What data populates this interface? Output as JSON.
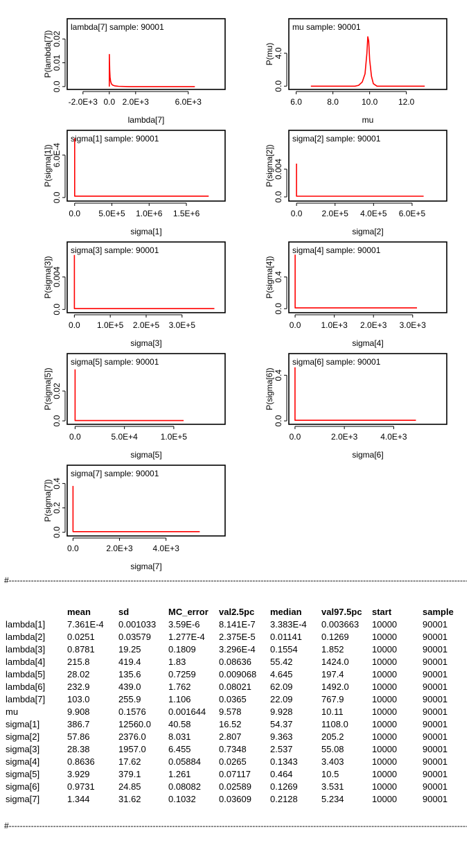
{
  "chart_data": [
    {
      "type": "line",
      "title": "lambda[7] sample: 90001",
      "xlabel": "lambda[7]",
      "ylabel": "P(lambda[7])",
      "xticks": [
        {
          "v": -2000,
          "l": "-2.0E+3"
        },
        {
          "v": 0,
          "l": "0.0"
        },
        {
          "v": 2000,
          "l": "2.0E+3"
        },
        {
          "v": 6000,
          "l": "6.0E+3"
        }
      ],
      "yticks": [
        {
          "v": 0,
          "l": "0.0"
        },
        {
          "v": 0.01,
          "l": "0.01"
        },
        {
          "v": 0.02,
          "l": "0.02"
        }
      ],
      "xlim": [
        -3200,
        8800
      ],
      "ylim": [
        -0.0012,
        0.0285
      ],
      "color": "#ff0000",
      "points": [
        [
          0,
          0
        ],
        [
          5,
          0.0135
        ],
        [
          15,
          0.0105
        ],
        [
          30,
          0.007
        ],
        [
          60,
          0.004
        ],
        [
          100,
          0.0022
        ],
        [
          160,
          0.0012
        ],
        [
          250,
          0.0006
        ],
        [
          400,
          0.0003
        ],
        [
          700,
          0.0001
        ],
        [
          1500,
          0
        ],
        [
          6500,
          0
        ]
      ]
    },
    {
      "type": "line",
      "title": "mu sample: 90001",
      "xlabel": "mu",
      "ylabel": "P(mu)",
      "xticks": [
        {
          "v": 6,
          "l": "6.0"
        },
        {
          "v": 8,
          "l": "8.0"
        },
        {
          "v": 10,
          "l": "10.0"
        },
        {
          "v": 12,
          "l": "12.0"
        }
      ],
      "yticks": [
        {
          "v": 0,
          "l": "0.0"
        },
        {
          "v": 4,
          "l": "4.0"
        }
      ],
      "xlim": [
        5.6,
        14.2
      ],
      "ylim": [
        -0.4,
        8.2
      ],
      "color": "#ff0000",
      "points": [
        [
          6.8,
          0
        ],
        [
          9.2,
          0
        ],
        [
          9.4,
          0.1
        ],
        [
          9.6,
          0.5
        ],
        [
          9.75,
          1.5
        ],
        [
          9.85,
          4
        ],
        [
          9.9,
          6
        ],
        [
          9.95,
          5.5
        ],
        [
          10.0,
          3.2
        ],
        [
          10.1,
          1.2
        ],
        [
          10.2,
          0.3
        ],
        [
          10.4,
          0
        ],
        [
          13,
          0
        ]
      ]
    },
    {
      "type": "line",
      "title": "sigma[1] sample: 90001",
      "xlabel": "sigma[1]",
      "ylabel": "P(sigma[1])",
      "xticks": [
        {
          "v": 0,
          "l": "0.0"
        },
        {
          "v": 500000,
          "l": "5.0E+5"
        },
        {
          "v": 1000000,
          "l": "1.0E+6"
        },
        {
          "v": 1500000,
          "l": "1.5E+6"
        }
      ],
      "yticks": [
        {
          "v": 0,
          "l": "0.0"
        },
        {
          "v": 0.0006,
          "l": "6.0E-4"
        }
      ],
      "xlim": [
        -100000,
        2020000
      ],
      "ylim": [
        -5e-05,
        0.00095
      ],
      "color": "#ff0000",
      "points": [
        [
          0,
          0.00084
        ],
        [
          0,
          2e-05
        ],
        [
          1800000,
          2e-05
        ]
      ]
    },
    {
      "type": "line",
      "title": "sigma[2] sample: 90001",
      "xlabel": "sigma[2]",
      "ylabel": "P(sigma[2])",
      "xticks": [
        {
          "v": 0,
          "l": "0.0"
        },
        {
          "v": 200000,
          "l": "2.0E+5"
        },
        {
          "v": 400000,
          "l": "4.0E+5"
        },
        {
          "v": 600000,
          "l": "6.0E+5"
        }
      ],
      "yticks": [
        {
          "v": 0,
          "l": "0.0"
        },
        {
          "v": 0.004,
          "l": "0.004"
        }
      ],
      "xlim": [
        -40000,
        780000
      ],
      "ylim": [
        -0.0006,
        0.0096
      ],
      "color": "#ff0000",
      "points": [
        [
          0,
          0.0048
        ],
        [
          0,
          0.0001
        ],
        [
          660000,
          0.0001
        ]
      ]
    },
    {
      "type": "line",
      "title": "sigma[3] sample: 90001",
      "xlabel": "sigma[3]",
      "ylabel": "P(sigma[3])",
      "xticks": [
        {
          "v": 0,
          "l": "0.0"
        },
        {
          "v": 100000,
          "l": "1.0E+5"
        },
        {
          "v": 200000,
          "l": "2.0E+5"
        },
        {
          "v": 300000,
          "l": "3.0E+5"
        }
      ],
      "yticks": [
        {
          "v": 0,
          "l": "0.0"
        },
        {
          "v": 0.004,
          "l": "0.004"
        }
      ],
      "xlim": [
        -20000,
        420000
      ],
      "ylim": [
        -0.0004,
        0.0083
      ],
      "color": "#ff0000",
      "points": [
        [
          0,
          0.0067
        ],
        [
          0,
          0.0001
        ],
        [
          390000,
          0.0001
        ]
      ]
    },
    {
      "type": "line",
      "title": "sigma[4] sample: 90001",
      "xlabel": "sigma[4]",
      "ylabel": "P(sigma[4])",
      "xticks": [
        {
          "v": 0,
          "l": "0.0"
        },
        {
          "v": 1000,
          "l": "1.0E+3"
        },
        {
          "v": 2000,
          "l": "2.0E+3"
        },
        {
          "v": 3000,
          "l": "3.0E+3"
        }
      ],
      "yticks": [
        {
          "v": 0,
          "l": "0.0"
        },
        {
          "v": 0.4,
          "l": "0.4"
        }
      ],
      "xlim": [
        -160,
        3870
      ],
      "ylim": [
        -0.05,
        0.84
      ],
      "color": "#ff0000",
      "points": [
        [
          0,
          0.68
        ],
        [
          0,
          0.01
        ],
        [
          3110,
          0.01
        ]
      ]
    },
    {
      "type": "line",
      "title": "sigma[5] sample: 90001",
      "xlabel": "sigma[5]",
      "ylabel": "P(sigma[5])",
      "xticks": [
        {
          "v": 0,
          "l": "0.0"
        },
        {
          "v": 50000,
          "l": "5.0E+4"
        },
        {
          "v": 100000,
          "l": "1.0E+5"
        }
      ],
      "yticks": [
        {
          "v": 0,
          "l": "0.0"
        },
        {
          "v": 0.02,
          "l": "0.02"
        }
      ],
      "xlim": [
        -8000,
        152000
      ],
      "ylim": [
        -0.0023,
        0.0451
      ],
      "color": "#ff0000",
      "points": [
        [
          0,
          0.0345
        ],
        [
          0,
          0.0002
        ],
        [
          110000,
          0.0002
        ]
      ]
    },
    {
      "type": "line",
      "title": "sigma[6] sample: 90001",
      "xlabel": "sigma[6]",
      "ylabel": "P(sigma[6])",
      "xticks": [
        {
          "v": 0,
          "l": "0.0"
        },
        {
          "v": 2000,
          "l": "2.0E+3"
        },
        {
          "v": 4000,
          "l": "4.0E+3"
        }
      ],
      "yticks": [
        {
          "v": 0,
          "l": "0.0"
        },
        {
          "v": 0.4,
          "l": "0.4"
        }
      ],
      "xlim": [
        -250,
        6150
      ],
      "ylim": [
        -0.03,
        0.59
      ],
      "color": "#ff0000",
      "points": [
        [
          0,
          0.47
        ],
        [
          0,
          0.005
        ],
        [
          4900,
          0.005
        ]
      ]
    },
    {
      "type": "line",
      "title": "sigma[7] sample: 90001",
      "xlabel": "sigma[7]",
      "ylabel": "P(sigma[7])",
      "xticks": [
        {
          "v": 0,
          "l": "0.0"
        },
        {
          "v": 2000,
          "l": "2.0E+3"
        },
        {
          "v": 4000,
          "l": "4.0E+3"
        }
      ],
      "yticks": [
        {
          "v": 0,
          "l": "0.0"
        },
        {
          "v": 0.2,
          "l": "0.2"
        },
        {
          "v": 0.4,
          "l": "0.4"
        }
      ],
      "xlim": [
        -250,
        6540
      ],
      "ylim": [
        -0.03,
        0.55
      ],
      "color": "#ff0000",
      "points": [
        [
          0,
          0.38
        ],
        [
          0,
          0.005
        ],
        [
          5450,
          0.005
        ]
      ]
    }
  ],
  "separator": "#--------------------------------------------------------------------------------------------------------------------------------------------------------------------------------------------------------------------------------------------",
  "stats": {
    "headers": [
      "",
      "mean",
      "sd",
      "MC_error",
      "val2.5pc",
      "median",
      "val97.5pc",
      "start",
      "sample"
    ],
    "rows": [
      [
        "lambda[1]",
        "7.361E-4",
        "0.001033",
        "3.59E-6",
        "8.141E-7",
        "3.383E-4",
        "0.003663",
        "10000",
        "90001"
      ],
      [
        "lambda[2]",
        "0.0251",
        "0.03579",
        "1.277E-4",
        "2.375E-5",
        "0.01141",
        "0.1269",
        "10000",
        "90001"
      ],
      [
        "lambda[3]",
        "0.8781",
        "19.25",
        "0.1809",
        "3.296E-4",
        "0.1554",
        "1.852",
        "10000",
        "90001"
      ],
      [
        "lambda[4]",
        "215.8",
        "419.4",
        "1.83",
        "0.08636",
        "55.42",
        "1424.0",
        "10000",
        "90001"
      ],
      [
        "lambda[5]",
        "28.02",
        "135.6",
        "0.7259",
        "0.009068",
        "4.645",
        "197.4",
        "10000",
        "90001"
      ],
      [
        "lambda[6]",
        "232.9",
        "439.0",
        "1.762",
        "0.08021",
        "62.09",
        "1492.0",
        "10000",
        "90001"
      ],
      [
        "lambda[7]",
        "103.0",
        "255.9",
        "1.106",
        "0.0365",
        "22.09",
        "767.9",
        "10000",
        "90001"
      ],
      [
        "mu",
        "9.908",
        "0.1576",
        "0.001644",
        "9.578",
        "9.928",
        "10.11",
        "10000",
        "90001"
      ],
      [
        "sigma[1]",
        "386.7",
        "12560.0",
        "40.58",
        "16.52",
        "54.37",
        "1108.0",
        "10000",
        "90001"
      ],
      [
        "sigma[2]",
        "57.86",
        "2376.0",
        "8.031",
        "2.807",
        "9.363",
        "205.2",
        "10000",
        "90001"
      ],
      [
        "sigma[3]",
        "28.38",
        "1957.0",
        "6.455",
        "0.7348",
        "2.537",
        "55.08",
        "10000",
        "90001"
      ],
      [
        "sigma[4]",
        "0.8636",
        "17.62",
        "0.05884",
        "0.0265",
        "0.1343",
        "3.403",
        "10000",
        "90001"
      ],
      [
        "sigma[5]",
        "3.929",
        "379.1",
        "1.261",
        "0.07117",
        "0.464",
        "10.5",
        "10000",
        "90001"
      ],
      [
        "sigma[6]",
        "0.9731",
        "24.85",
        "0.08082",
        "0.02589",
        "0.1269",
        "3.531",
        "10000",
        "90001"
      ],
      [
        "sigma[7]",
        "1.344",
        "31.62",
        "0.1032",
        "0.03609",
        "0.2128",
        "5.234",
        "10000",
        "90001"
      ]
    ]
  }
}
